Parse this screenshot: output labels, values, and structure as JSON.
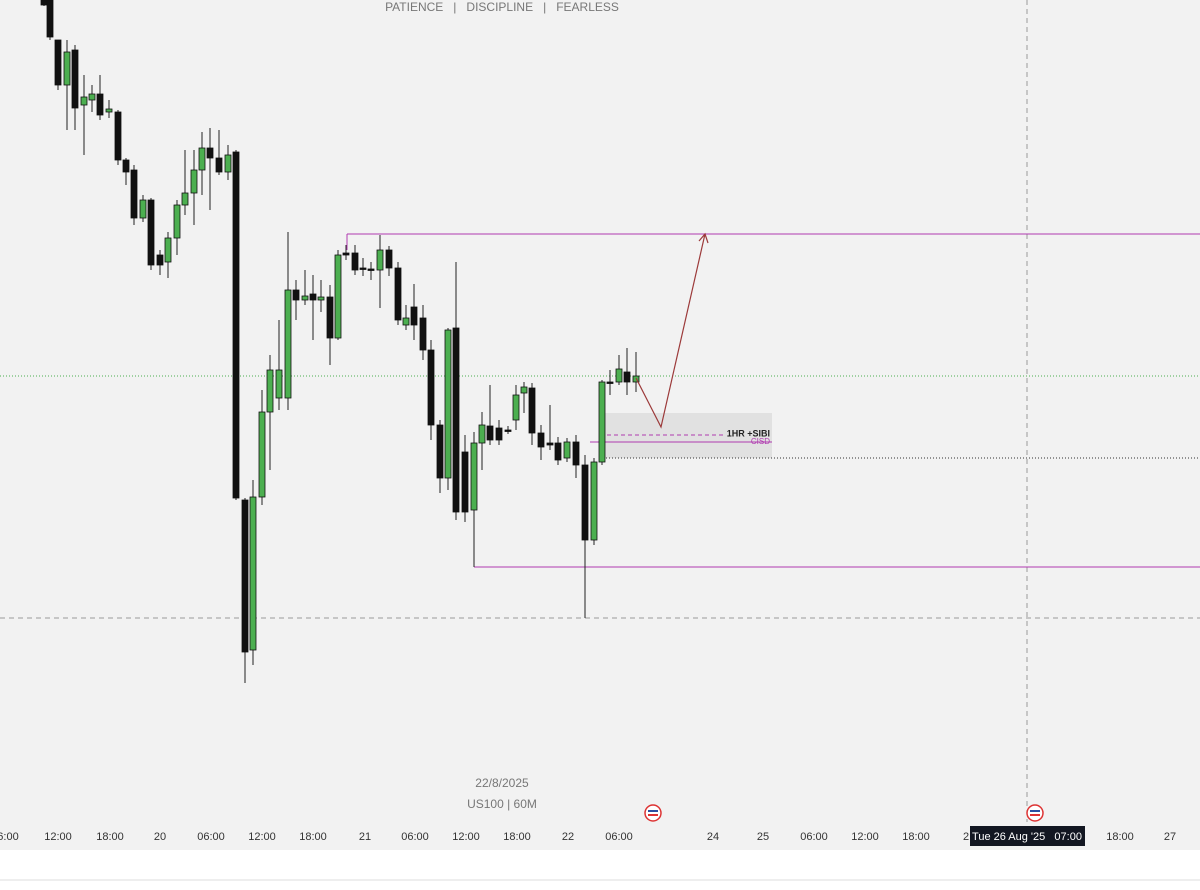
{
  "header": {
    "title": "PATIENCE   |   DISCIPLINE   |   FEARLESS"
  },
  "watermark": {
    "date": "22/8/2025",
    "symbol": "US100 | 60M"
  },
  "annotations": {
    "zone": "1HR +SIBI",
    "cisd": "CISD"
  },
  "time_axis": {
    "labels": [
      "6:00",
      "12:00",
      "18:00",
      "20",
      "06:00",
      "12:00",
      "18:00",
      "21",
      "06:00",
      "12:00",
      "18:00",
      "22",
      "06:00",
      "24",
      "25",
      "06:00",
      "12:00",
      "18:00",
      "2",
      "18:00",
      "27"
    ],
    "crosshair": "Tue 26 Aug '25   07:00"
  }
}
